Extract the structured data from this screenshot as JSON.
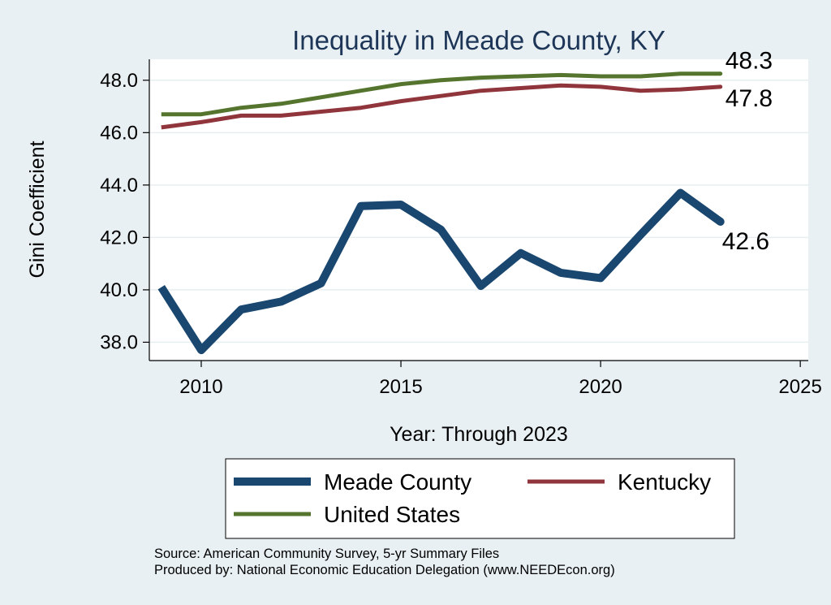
{
  "chart_data": {
    "type": "line",
    "title": "Inequality in Meade County, KY",
    "xlabel": "Year: Through 2023",
    "ylabel": "Gini Coefficient",
    "xlim": [
      2008.7,
      2025.2
    ],
    "ylim": [
      37.3,
      48.8
    ],
    "xticks": [
      2010,
      2015,
      2020,
      2025
    ],
    "yticks": [
      38.0,
      40.0,
      42.0,
      44.0,
      46.0,
      48.0
    ],
    "ytick_labels": [
      "38.0",
      "40.0",
      "42.0",
      "44.0",
      "46.0",
      "48.0"
    ],
    "grid": true,
    "legend_position": "bottom",
    "x": [
      2009,
      2010,
      2011,
      2012,
      2013,
      2014,
      2015,
      2016,
      2017,
      2018,
      2019,
      2020,
      2021,
      2022,
      2023
    ],
    "series": [
      {
        "name": "Meade County",
        "color": "#1a476f",
        "values": [
          40.1,
          37.7,
          39.25,
          39.55,
          40.25,
          43.2,
          43.25,
          42.3,
          40.15,
          41.4,
          40.65,
          40.45,
          42.1,
          43.7,
          42.6
        ],
        "end_label": "42.6"
      },
      {
        "name": "Kentucky",
        "color": "#90353b",
        "values": [
          46.2,
          46.4,
          46.65,
          46.65,
          46.8,
          46.95,
          47.2,
          47.4,
          47.6,
          47.7,
          47.8,
          47.75,
          47.6,
          47.65,
          47.75
        ],
        "end_label": "47.8"
      },
      {
        "name": "United States",
        "color": "#55752f",
        "values": [
          46.7,
          46.7,
          46.95,
          47.1,
          47.35,
          47.6,
          47.85,
          48.0,
          48.1,
          48.15,
          48.2,
          48.15,
          48.15,
          48.25,
          48.25
        ],
        "end_label": "48.3"
      }
    ]
  },
  "footer": {
    "source_line": "Source: American Community Survey, 5-yr Summary Files",
    "produced_line": "Produced by: National Economic Education Delegation (www.NEEDEcon.org)"
  }
}
